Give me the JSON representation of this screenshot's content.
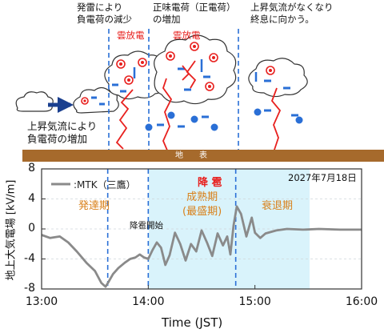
{
  "annotations": {
    "top_left_line1": "発雷により",
    "top_left_line2": "負電荷の減少",
    "top_mid_line1": "正味電荷（正電荷）",
    "top_mid_line2": "の増加",
    "top_right_line1": "上昇気流がなくなり",
    "top_right_line2": "終息に向かう。",
    "left_line1": "上昇気流により",
    "left_line2": "負電荷の増加",
    "discharge1": "雲放電",
    "discharge2": "雲放電",
    "ground": "地　　表"
  },
  "colors": {
    "red": "#e8201e",
    "blue": "#2a6fd6",
    "ground": "#a66a2c",
    "shade": "#d9f3fb",
    "orange": "#d9801a",
    "trace": "#8a8a8a"
  },
  "chart_data": {
    "type": "line",
    "ylabel": "地上大気電場 [kV/m]",
    "xlabel": "Time (JST)",
    "date_label": "2027年7月18日",
    "legend": ":MTK（三鷹）",
    "series_name": "MTK（三鷹）",
    "x_ticks": [
      "13:00",
      "14:00",
      "15:00",
      "16:00"
    ],
    "y_ticks": [
      "8",
      "4",
      "0",
      "-4",
      "-8"
    ],
    "ylim": [
      -8,
      8
    ],
    "xlim_hours": [
      13.0,
      16.0
    ],
    "shaded_span_hours": [
      14.0,
      15.5
    ],
    "phase_dividers_hours": [
      13.62,
      14.82
    ],
    "phases": {
      "developing": "発達期",
      "mature_line1": "成熟期",
      "mature_line2": "(最盛期)",
      "dissipating": "衰退期",
      "hail": "降 雹",
      "hail_start": "降雹開始"
    },
    "x": [
      13.0,
      13.08,
      13.17,
      13.25,
      13.33,
      13.42,
      13.5,
      13.56,
      13.6,
      13.63,
      13.67,
      13.72,
      13.78,
      13.83,
      13.88,
      13.92,
      13.96,
      14.0,
      14.04,
      14.08,
      14.12,
      14.16,
      14.2,
      14.25,
      14.3,
      14.35,
      14.4,
      14.45,
      14.5,
      14.55,
      14.6,
      14.65,
      14.7,
      14.74,
      14.77,
      14.8,
      14.83,
      14.87,
      14.92,
      14.97,
      15.0,
      15.05,
      15.1,
      15.2,
      15.3,
      15.45,
      15.6,
      15.8,
      16.0
    ],
    "y": [
      -0.8,
      -1.2,
      -1.0,
      -1.8,
      -3.0,
      -4.5,
      -5.6,
      -7.2,
      -7.7,
      -7.0,
      -6.0,
      -5.2,
      -4.5,
      -4.0,
      -3.8,
      -3.4,
      -3.8,
      -4.0,
      -2.8,
      -1.8,
      -2.5,
      -4.8,
      -3.5,
      -0.5,
      -2.0,
      -4.2,
      -2.0,
      -3.0,
      -0.2,
      -1.8,
      -3.6,
      -0.6,
      -2.2,
      -1.0,
      -3.4,
      0.5,
      3.0,
      2.0,
      -1.0,
      1.5,
      -0.5,
      -1.2,
      -0.6,
      -0.2,
      0.0,
      -0.1,
      0.0,
      -0.1,
      -0.1
    ]
  }
}
